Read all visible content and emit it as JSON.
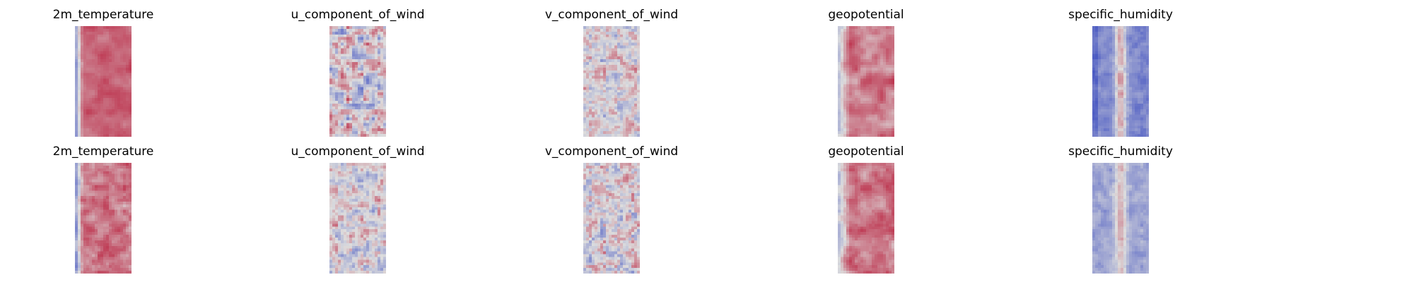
{
  "chart_data": [
    {
      "type": "heatmap",
      "row": 0,
      "col": 0,
      "title": "2m_temperature",
      "colormap": "coolwarm",
      "axes": "off",
      "grid": false
    },
    {
      "type": "heatmap",
      "row": 0,
      "col": 1,
      "title": "u_component_of_wind",
      "colormap": "coolwarm",
      "axes": "off",
      "grid": false
    },
    {
      "type": "heatmap",
      "row": 0,
      "col": 2,
      "title": "v_component_of_wind",
      "colormap": "coolwarm",
      "axes": "off",
      "grid": false
    },
    {
      "type": "heatmap",
      "row": 0,
      "col": 3,
      "title": "geopotential",
      "colormap": "coolwarm",
      "axes": "off",
      "grid": false
    },
    {
      "type": "heatmap",
      "row": 0,
      "col": 4,
      "title": "specific_humidity",
      "colormap": "coolwarm",
      "axes": "off",
      "grid": false
    },
    {
      "type": "heatmap",
      "row": 1,
      "col": 0,
      "title": "2m_temperature",
      "colormap": "coolwarm",
      "axes": "off",
      "grid": false
    },
    {
      "type": "heatmap",
      "row": 1,
      "col": 1,
      "title": "u_component_of_wind",
      "colormap": "coolwarm",
      "axes": "off",
      "grid": false
    },
    {
      "type": "heatmap",
      "row": 1,
      "col": 2,
      "title": "v_component_of_wind",
      "colormap": "coolwarm",
      "axes": "off",
      "grid": false
    },
    {
      "type": "heatmap",
      "row": 1,
      "col": 3,
      "title": "geopotential",
      "colormap": "coolwarm",
      "axes": "off",
      "grid": false
    },
    {
      "type": "heatmap",
      "row": 1,
      "col": 4,
      "title": "specific_humidity",
      "colormap": "coolwarm",
      "axes": "off",
      "grid": false
    }
  ],
  "colors": {
    "cold_end": "#3b4cc0",
    "neutral": "#dddddd",
    "warm_end": "#b40426"
  }
}
